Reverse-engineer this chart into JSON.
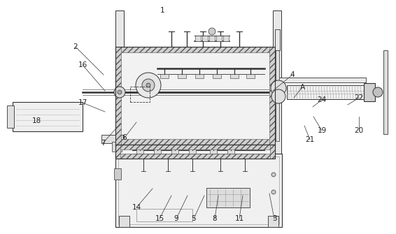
{
  "lc": "#333333",
  "lc2": "#555555",
  "bg": "#f8f8f8",
  "label_fontsize": 7.5,
  "labels": [
    [
      "1",
      232,
      320,
      null,
      null
    ],
    [
      "2",
      108,
      268,
      148,
      228
    ],
    [
      "3",
      392,
      22,
      385,
      58
    ],
    [
      "4",
      418,
      228,
      390,
      205
    ],
    [
      "5",
      277,
      22,
      292,
      55
    ],
    [
      "6",
      178,
      138,
      195,
      160
    ],
    [
      "7",
      147,
      130,
      172,
      158
    ],
    [
      "8",
      307,
      22,
      312,
      55
    ],
    [
      "9",
      252,
      22,
      268,
      55
    ],
    [
      "11",
      342,
      22,
      347,
      55
    ],
    [
      "14",
      195,
      38,
      218,
      65
    ],
    [
      "15",
      228,
      22,
      245,
      55
    ],
    [
      "16",
      118,
      242,
      150,
      205
    ],
    [
      "17",
      118,
      188,
      150,
      175
    ],
    [
      "18",
      52,
      162,
      null,
      null
    ],
    [
      "19",
      460,
      148,
      448,
      168
    ],
    [
      "20",
      513,
      148,
      513,
      168
    ],
    [
      "21",
      443,
      135,
      435,
      155
    ],
    [
      "22",
      513,
      195,
      497,
      185
    ],
    [
      "24",
      460,
      192,
      447,
      182
    ],
    [
      "A",
      432,
      210,
      420,
      195
    ]
  ]
}
